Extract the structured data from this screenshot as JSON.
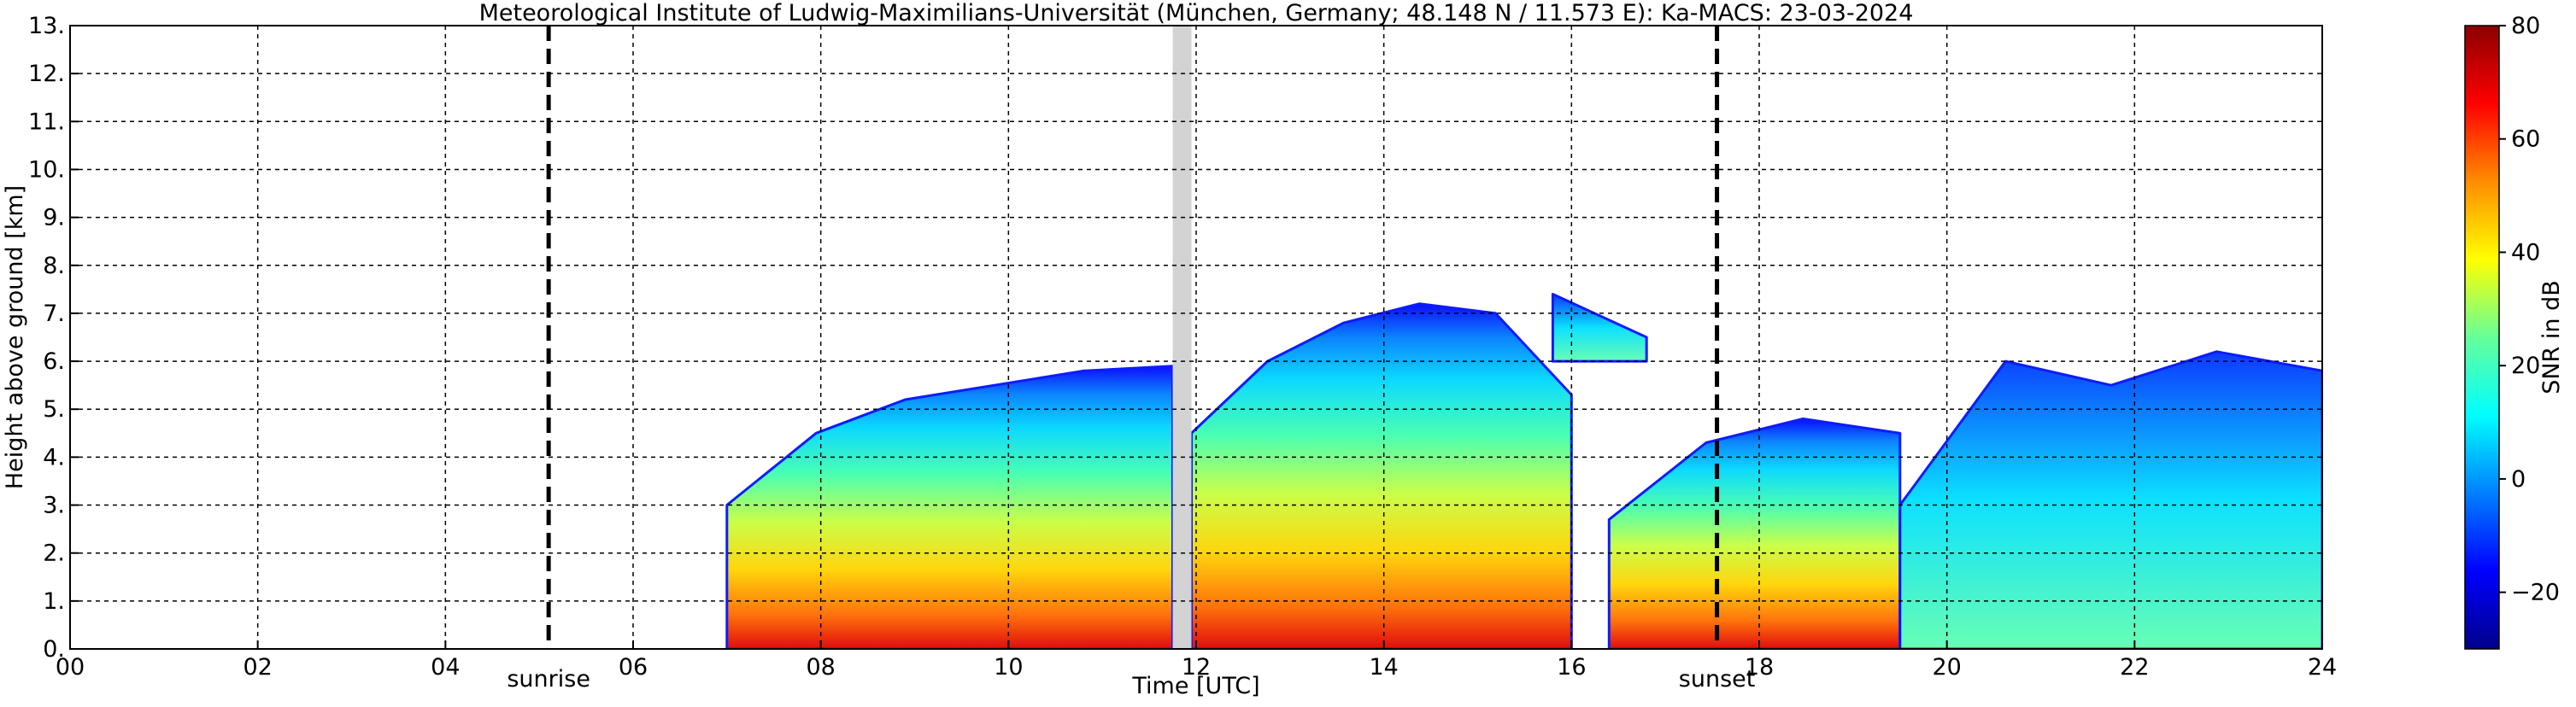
{
  "chart_data": {
    "type": "heatmap",
    "title": "Meteorological Institute of Ludwig-Maximilians-Universität (München, Germany; 48.148 N / 11.573 E):    Ka-MACS: 23-03-2024",
    "xlabel": "Time [UTC]",
    "ylabel": "Height above ground [km]",
    "xlim": [
      0,
      24
    ],
    "ylim": [
      0,
      13
    ],
    "x_ticks": [
      "00",
      "02",
      "04",
      "06",
      "08",
      "10",
      "12",
      "14",
      "16",
      "18",
      "20",
      "22",
      "24"
    ],
    "y_ticks": [
      "0.",
      "1.",
      "2.",
      "3.",
      "4.",
      "5.",
      "6.",
      "7.",
      "8.",
      "9.",
      "10.",
      "11.",
      "12.",
      "13."
    ],
    "grid": true,
    "colorbar": {
      "label": "SNR in dB",
      "range": [
        -30,
        80
      ],
      "ticks": [
        "80",
        "60",
        "40",
        "20",
        "0",
        "−20"
      ],
      "colors": [
        "#00008b",
        "#0000ff",
        "#0080ff",
        "#00ffff",
        "#66ff99",
        "#ffff00",
        "#ff8c00",
        "#ff0000",
        "#8b0000"
      ]
    },
    "vertical_lines": [
      {
        "x": 5.1,
        "label": "sunrise"
      },
      {
        "x": 17.55,
        "label": "sunset"
      }
    ],
    "data_gap": {
      "x_start": 11.75,
      "x_end": 11.95,
      "color": "#d3d3d3"
    },
    "echo_regions": [
      {
        "name": "stratiform-main",
        "x_start": 7.0,
        "x_end": 11.75,
        "top_km": [
          3.0,
          4.5,
          5.2,
          5.5,
          5.8,
          5.9
        ],
        "peak_snr_db": 70
      },
      {
        "name": "stratiform-midday",
        "x_start": 11.95,
        "x_end": 16.0,
        "top_km": [
          4.5,
          6.0,
          6.8,
          7.2,
          7.0,
          5.3
        ],
        "peak_snr_db": 65
      },
      {
        "name": "elevated-cell",
        "x_start": 15.8,
        "x_end": 16.8,
        "top_km": [
          7.4,
          6.5
        ],
        "bottom_km": 6.0,
        "peak_snr_db": 10
      },
      {
        "name": "convective-afternoon",
        "x_start": 16.4,
        "x_end": 19.5,
        "top_km": [
          2.7,
          4.3,
          4.8,
          4.5
        ],
        "peak_snr_db": 70
      },
      {
        "name": "evening-cells",
        "x_start": 19.5,
        "x_end": 24.0,
        "top_km": [
          3.0,
          6.0,
          5.5,
          6.2,
          5.8
        ],
        "peak_snr_db": 30
      }
    ]
  }
}
